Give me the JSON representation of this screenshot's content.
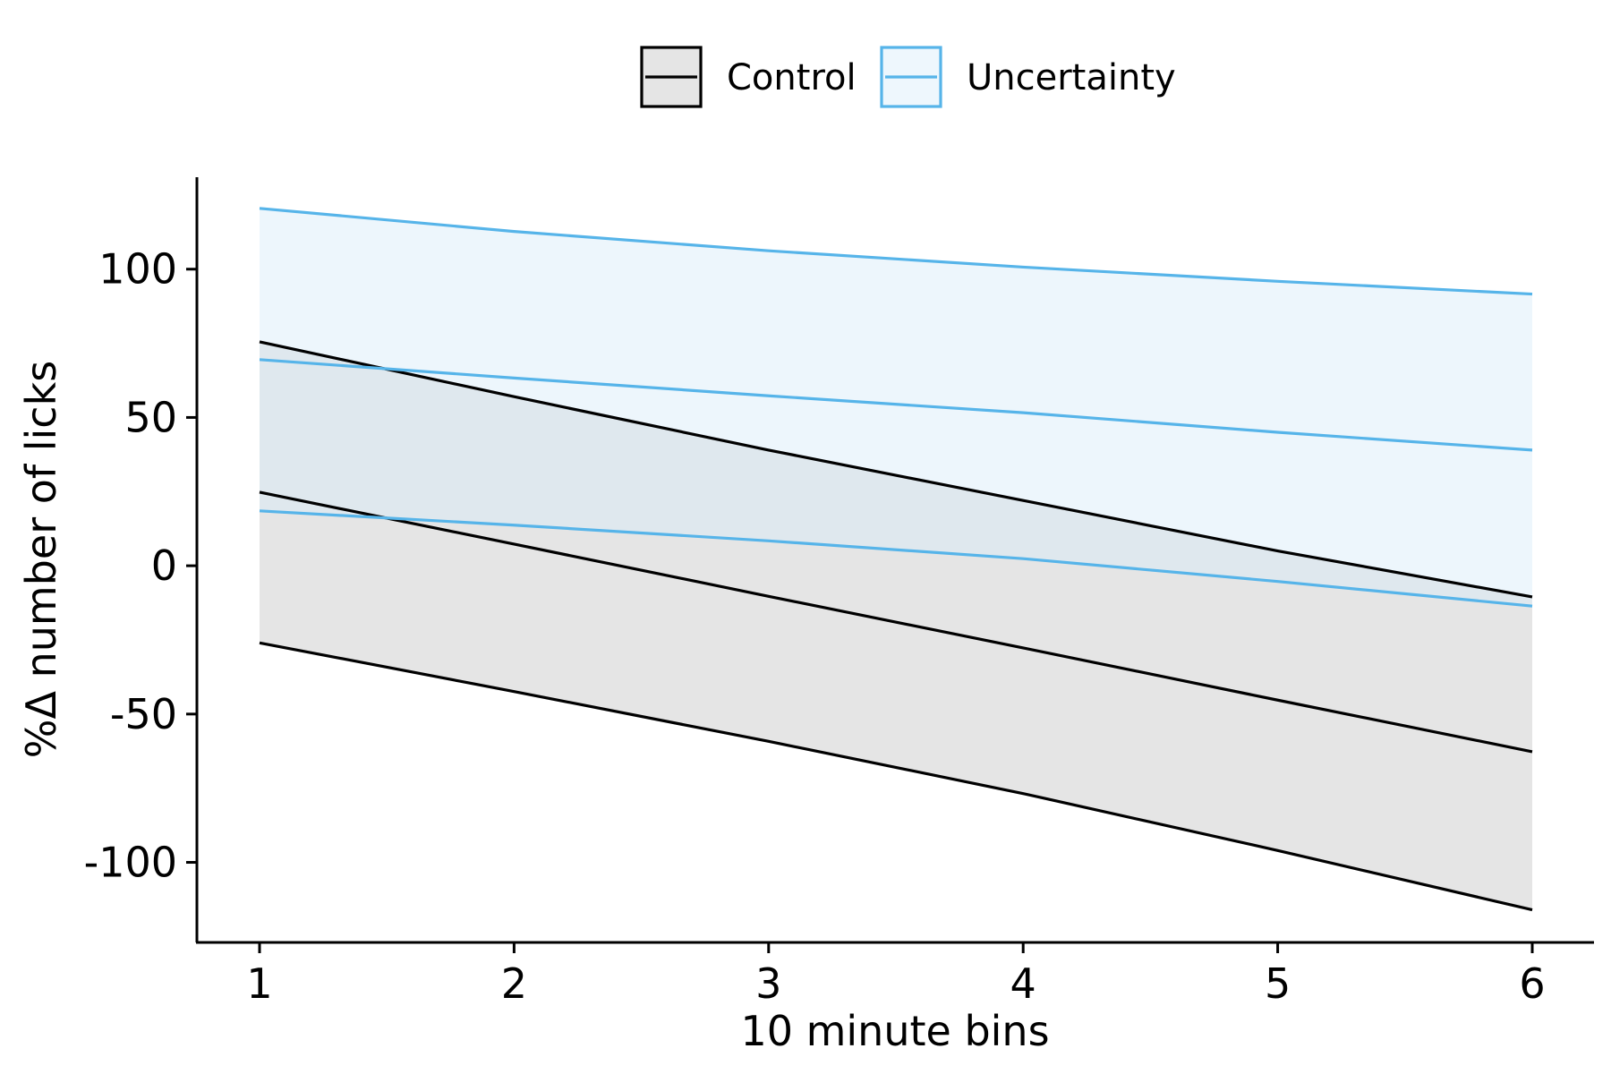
{
  "chart_data": {
    "type": "line",
    "title": "",
    "xlabel": "10 minute bins",
    "ylabel": "%Δ number of licks",
    "xlim": [
      0.75,
      6.25
    ],
    "ylim": [
      -127,
      131
    ],
    "x_ticks": [
      1,
      2,
      3,
      4,
      5,
      6
    ],
    "y_ticks": [
      -100,
      -50,
      0,
      50,
      100
    ],
    "y_tick_labels": [
      "-100",
      "-50",
      "0",
      "50",
      "100"
    ],
    "grid": false,
    "legend": {
      "position": "top",
      "entries": [
        "Control",
        "Uncertainty"
      ]
    },
    "x": [
      1,
      2,
      3,
      4,
      5,
      6
    ],
    "series": [
      {
        "name": "Control",
        "color": "#000000",
        "fill": "#e5e5e5",
        "fill_opacity": 1,
        "upper": [
          75.5,
          57,
          39,
          22,
          5,
          -10.5
        ],
        "mid": [
          24.8,
          7.3,
          -10.3,
          -27.7,
          -45.3,
          -62.7
        ],
        "lower": [
          -26,
          -42.4,
          -59.2,
          -76.8,
          -96,
          -116
        ]
      },
      {
        "name": "Uncertainty",
        "color": "#56b4e9",
        "fill": "#d6ebf8",
        "fill_opacity": 0.45,
        "upper": [
          120.5,
          112.7,
          106.2,
          100.7,
          95.9,
          91.6
        ],
        "mid": [
          69.5,
          63.3,
          57.3,
          51.6,
          45,
          39
        ],
        "lower": [
          18.5,
          13.7,
          8.4,
          2.4,
          -5.3,
          -13.6
        ]
      }
    ]
  }
}
